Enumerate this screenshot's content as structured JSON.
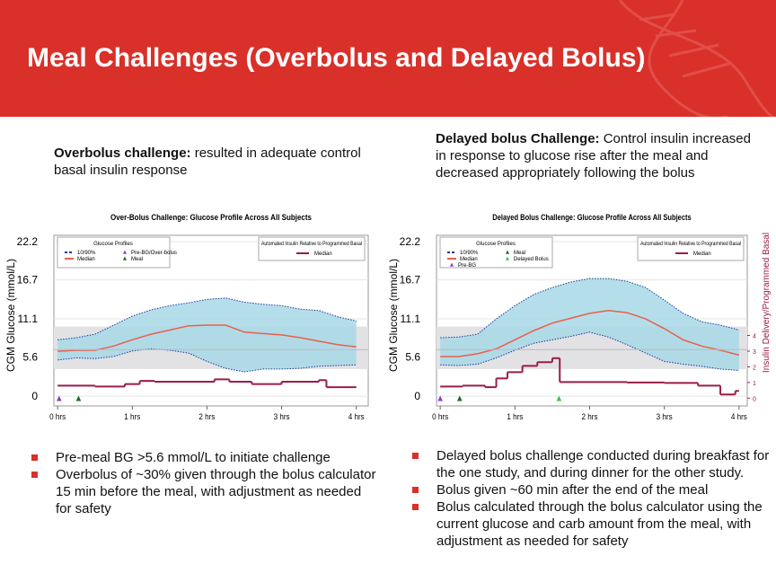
{
  "header": {
    "title": "Meal Challenges (Overbolus and Delayed Bolus)"
  },
  "captions": [
    {
      "bold": "Overbolus challenge:",
      "text": " resulted in adequate control basal insulin response"
    },
    {
      "bold": "Delayed bolus Challenge:",
      "text": " Control insulin increased in response to glucose rise after the meal and decreased appropriately following the bolus"
    }
  ],
  "bullets": [
    [
      "Pre-meal BG >5.6 mmol/L to initiate challenge",
      "Overbolus of ~30% given through the bolus calculator 15 min before the meal, with adjustment as needed for safety"
    ],
    [
      "Delayed bolus challenge conducted during breakfast for the one study, and during dinner for the other study.",
      "Bolus given ~60 min after the end of the meal",
      "Bolus calculated through the bolus calculator using the current glucose and carb amount from the meal, with adjustment as needed for safety"
    ]
  ],
  "chart_data": [
    {
      "type": "line",
      "title": "Over-Bolus Challenge: Glucose Profile Across All Subjects",
      "y_label": "CGM Glucose (mmol/L)",
      "legend_title": "Glucose Profiles",
      "legend2_title": "Automated Insulin Relative to Programmed Basal",
      "x": [
        0,
        0.25,
        0.5,
        0.75,
        1,
        1.25,
        1.5,
        1.75,
        2,
        2.25,
        2.5,
        2.75,
        3,
        3.25,
        3.5,
        3.75,
        4
      ],
      "series": [
        {
          "name": "Median",
          "color": "#e8604a",
          "values": [
            6.45,
            6.6,
            6.6,
            7.2,
            8.1,
            8.9,
            9.5,
            10.1,
            10.2,
            10.2,
            9.2,
            9.0,
            8.8,
            8.4,
            7.9,
            7.4,
            7.1
          ]
        }
      ],
      "band": {
        "name": "10/90%",
        "color": "#1a3a9c",
        "fill": "#a8d8e8",
        "upper": [
          8.1,
          8.4,
          8.9,
          10.2,
          11.5,
          12.4,
          13.0,
          13.4,
          13.9,
          14.1,
          13.5,
          13.2,
          13.0,
          12.5,
          12.3,
          11.4,
          10.8
        ],
        "lower": [
          5.2,
          5.5,
          5.4,
          5.7,
          6.5,
          6.8,
          6.6,
          6.2,
          5.0,
          4.0,
          3.5,
          3.9,
          3.9,
          4.0,
          4.3,
          4.4,
          4.5
        ]
      },
      "target_range": [
        3.9,
        10
      ],
      "insulin": {
        "name": "Median",
        "color": "#9b1b4a",
        "axis": "y2",
        "x": [
          0,
          0.5,
          0.9,
          1.1,
          1.3,
          2.1,
          2.3,
          2.6,
          3.0,
          3.5,
          3.6
        ],
        "values": [
          0.8,
          0.74,
          0.9,
          1.1,
          1.05,
          1.2,
          1.05,
          0.9,
          1.05,
          1.15,
          0.7
        ]
      },
      "events": [
        {
          "name": "Pre-BG/Over-bolus",
          "color": "#8a3fc0",
          "x": 0.02
        },
        {
          "name": "Meal",
          "color": "#1a6a2a",
          "x": 0.28
        }
      ],
      "xlim": [
        -0.05,
        4.16
      ],
      "xticks": [
        {
          "value": 0,
          "label": "0 hrs"
        },
        {
          "value": 1,
          "label": "1 hrs"
        },
        {
          "value": 2,
          "label": "2 hrs"
        },
        {
          "value": 3,
          "label": "3 hrs"
        },
        {
          "value": 4,
          "label": "4 hrs"
        }
      ],
      "ylim": [
        -1.4,
        23.1
      ],
      "yticks": [
        0,
        5.6,
        11.1,
        16.7,
        22.2
      ],
      "y2lim": [
        -0.5,
        10.4
      ],
      "grid": true
    },
    {
      "type": "line",
      "title": "Delayed Bolus Challenge: Glucose Profile Across All Subjects",
      "y_label": "CGM Glucose (mmol/L)",
      "y2_label": "Insulin Delivery/Programmed Basal",
      "legend_title": "Glucose Profiles",
      "legend2_title": "Automated Insulin Relative to Programmed Basal",
      "x": [
        0,
        0.25,
        0.5,
        0.75,
        1,
        1.25,
        1.5,
        1.75,
        2,
        2.25,
        2.5,
        2.75,
        3,
        3.25,
        3.5,
        3.75,
        4
      ],
      "series": [
        {
          "name": "Median",
          "color": "#e8604a",
          "values": [
            5.7,
            5.7,
            6.1,
            6.8,
            8.1,
            9.4,
            10.5,
            11.2,
            11.9,
            12.3,
            12.0,
            11.1,
            9.7,
            8.1,
            7.2,
            6.6,
            5.9
          ]
        }
      ],
      "band": {
        "name": "10/90%",
        "color": "#1a3a9c",
        "fill": "#a8d8e8",
        "upper": [
          8.4,
          8.5,
          8.9,
          11.1,
          13.0,
          14.6,
          15.6,
          16.4,
          16.9,
          16.9,
          16.5,
          15.6,
          13.8,
          11.9,
          10.7,
          10.2,
          9.5
        ],
        "lower": [
          4.5,
          4.4,
          4.6,
          5.5,
          6.6,
          7.6,
          8.1,
          8.6,
          9.2,
          8.5,
          7.4,
          6.2,
          5.0,
          4.6,
          4.3,
          3.9,
          3.7
        ]
      },
      "target_range": [
        3.9,
        10
      ],
      "insulin": {
        "name": "Median",
        "color": "#9b1b4a",
        "axis": "y2",
        "x": [
          0,
          0.3,
          0.6,
          0.75,
          0.9,
          1.1,
          1.3,
          1.5,
          1.6,
          2.5,
          3.0,
          3.45,
          3.75,
          3.95
        ],
        "values": [
          0.74,
          0.8,
          0.7,
          1.26,
          1.66,
          2.06,
          2.3,
          2.55,
          1.03,
          1.0,
          0.97,
          0.8,
          0.23,
          0.46
        ]
      },
      "events": [
        {
          "name": "Meal",
          "color": "#1a6a2a",
          "x": 0.26
        },
        {
          "name": "Delayed Bolus",
          "color": "#2ecc40",
          "x": 1.59
        },
        {
          "name": "Pre-BG",
          "color": "#8a3fc0",
          "x": 0.0
        }
      ],
      "xlim": [
        -0.05,
        4.11
      ],
      "xticks": [
        {
          "value": 0,
          "label": "0 hrs"
        },
        {
          "value": 1,
          "label": "1 hrs"
        },
        {
          "value": 2,
          "label": "2 hrs"
        },
        {
          "value": 3,
          "label": "3 hrs"
        },
        {
          "value": 4,
          "label": "4 hrs"
        }
      ],
      "ylim": [
        -1.4,
        23.1
      ],
      "yticks": [
        0,
        5.6,
        11.1,
        16.7,
        22.2
      ],
      "y2lim": [
        -0.5,
        10.4
      ],
      "y2ticks": [
        0,
        1,
        2,
        3,
        4
      ],
      "grid": true
    }
  ]
}
